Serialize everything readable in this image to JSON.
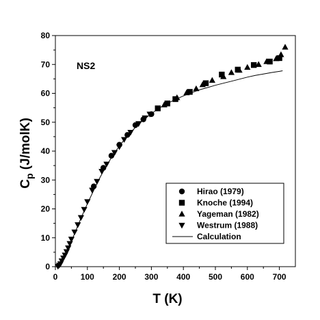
{
  "chart_data": {
    "type": "scatter",
    "xlabel": "T (K)",
    "ylabel_main": "C",
    "ylabel_sub": "p",
    "ylabel_unit": " (J/molK)",
    "annotation": "NS2",
    "xlim": [
      0,
      750
    ],
    "ylim": [
      0,
      80
    ],
    "x_ticks": [
      0,
      100,
      200,
      300,
      400,
      500,
      600,
      700
    ],
    "y_ticks": [
      0,
      10,
      20,
      30,
      40,
      50,
      60,
      70,
      80
    ],
    "legend_position": "bottom-right",
    "series": [
      {
        "name": "Hirao (1979)",
        "marker": "circle",
        "points": [
          [
            120,
            27.8
          ],
          [
            150,
            34.2
          ],
          [
            175,
            38.4
          ],
          [
            200,
            42.2
          ],
          [
            225,
            45.6
          ],
          [
            250,
            49.0
          ],
          [
            275,
            51.0
          ],
          [
            300,
            52.8
          ]
        ]
      },
      {
        "name": "Knoche (1994)",
        "marker": "square",
        "points": [
          [
            320,
            54.8
          ],
          [
            350,
            56.5
          ],
          [
            375,
            58.0
          ],
          [
            420,
            60.5
          ],
          [
            470,
            63.5
          ],
          [
            520,
            66.5
          ],
          [
            570,
            68.2
          ],
          [
            620,
            69.8
          ],
          [
            670,
            71.0
          ],
          [
            700,
            72.2
          ]
        ]
      },
      {
        "name": "Yageman (1982)",
        "marker": "triangle-up",
        "points": [
          [
            340,
            56.0
          ],
          [
            380,
            58.5
          ],
          [
            410,
            60.2
          ],
          [
            440,
            61.6
          ],
          [
            460,
            63.0
          ],
          [
            490,
            64.5
          ],
          [
            525,
            65.8
          ],
          [
            550,
            67.2
          ],
          [
            575,
            68.0
          ],
          [
            600,
            69.0
          ],
          [
            635,
            70.0
          ],
          [
            660,
            71.0
          ],
          [
            690,
            72.0
          ],
          [
            705,
            73.4
          ],
          [
            718,
            76.0
          ]
        ]
      },
      {
        "name": "Westrum (1988)",
        "marker": "triangle-down",
        "points": [
          [
            8,
            0.1
          ],
          [
            12,
            0.5
          ],
          [
            16,
            1.0
          ],
          [
            20,
            2.0
          ],
          [
            25,
            3.0
          ],
          [
            30,
            4.0
          ],
          [
            35,
            5.2
          ],
          [
            40,
            6.5
          ],
          [
            45,
            8.0
          ],
          [
            50,
            9.5
          ],
          [
            60,
            12.0
          ],
          [
            70,
            14.5
          ],
          [
            80,
            17.0
          ],
          [
            90,
            19.8
          ],
          [
            100,
            22.5
          ],
          [
            115,
            26.5
          ],
          [
            130,
            29.5
          ],
          [
            145,
            33.0
          ],
          [
            160,
            35.5
          ],
          [
            185,
            39.5
          ],
          [
            200,
            41.5
          ],
          [
            215,
            44.0
          ],
          [
            235,
            46.5
          ],
          [
            260,
            49.5
          ],
          [
            280,
            51.5
          ],
          [
            295,
            52.8
          ]
        ]
      },
      {
        "name": "Calculation",
        "marker": "line",
        "points": [
          [
            5,
            0.05
          ],
          [
            10,
            0.2
          ],
          [
            20,
            1.4
          ],
          [
            30,
            3.3
          ],
          [
            40,
            5.9
          ],
          [
            50,
            8.7
          ],
          [
            60,
            11.5
          ],
          [
            80,
            16.8
          ],
          [
            100,
            21.8
          ],
          [
            120,
            26.5
          ],
          [
            140,
            31.0
          ],
          [
            160,
            35.0
          ],
          [
            180,
            38.6
          ],
          [
            200,
            41.8
          ],
          [
            225,
            45.3
          ],
          [
            250,
            48.2
          ],
          [
            275,
            50.8
          ],
          [
            300,
            53.0
          ],
          [
            325,
            54.9
          ],
          [
            350,
            56.5
          ],
          [
            375,
            57.9
          ],
          [
            400,
            59.1
          ],
          [
            425,
            60.2
          ],
          [
            450,
            61.2
          ],
          [
            475,
            62.0
          ],
          [
            500,
            62.8
          ],
          [
            525,
            63.5
          ],
          [
            550,
            64.2
          ],
          [
            575,
            64.9
          ],
          [
            600,
            65.6
          ],
          [
            625,
            66.2
          ],
          [
            650,
            66.7
          ],
          [
            675,
            67.2
          ],
          [
            700,
            67.6
          ],
          [
            710,
            67.8
          ]
        ]
      }
    ]
  }
}
